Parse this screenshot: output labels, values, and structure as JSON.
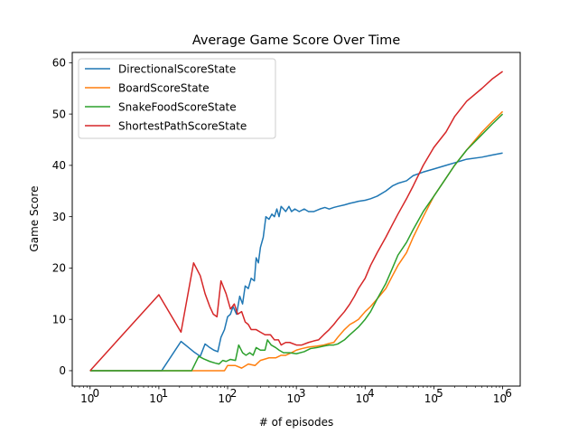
{
  "chart_data": {
    "type": "line",
    "title": "Average Game Score Over Time",
    "xlabel": "# of episodes",
    "ylabel": "Game Score",
    "xscale": "log",
    "xlim": [
      0.55,
      1800000
    ],
    "ylim": [
      -3,
      62
    ],
    "x_ticks": [
      {
        "value": 1,
        "base": "10",
        "exp": "0"
      },
      {
        "value": 10,
        "base": "10",
        "exp": "1"
      },
      {
        "value": 100,
        "base": "10",
        "exp": "2"
      },
      {
        "value": 1000,
        "base": "10",
        "exp": "3"
      },
      {
        "value": 10000,
        "base": "10",
        "exp": "4"
      },
      {
        "value": 100000,
        "base": "10",
        "exp": "5"
      },
      {
        "value": 1000000,
        "base": "10",
        "exp": "6"
      }
    ],
    "y_ticks": [
      0,
      10,
      20,
      30,
      40,
      50,
      60
    ],
    "grid": false,
    "legend_position": "top-left",
    "series": [
      {
        "name": "DirectionalScoreState",
        "color": "#1f77b4",
        "points": [
          [
            1,
            0
          ],
          [
            11,
            0
          ],
          [
            21,
            5.7
          ],
          [
            26,
            4.7
          ],
          [
            32,
            3.7
          ],
          [
            40,
            2.8
          ],
          [
            47,
            5.2
          ],
          [
            55,
            4.5
          ],
          [
            63,
            4
          ],
          [
            72,
            3.7
          ],
          [
            80,
            6.5
          ],
          [
            90,
            8
          ],
          [
            100,
            10.5
          ],
          [
            110,
            11
          ],
          [
            120,
            12.5
          ],
          [
            135,
            11
          ],
          [
            150,
            14.5
          ],
          [
            165,
            13
          ],
          [
            180,
            16.5
          ],
          [
            200,
            16
          ],
          [
            220,
            18
          ],
          [
            245,
            17.5
          ],
          [
            260,
            22
          ],
          [
            280,
            21
          ],
          [
            300,
            24
          ],
          [
            330,
            26
          ],
          [
            360,
            30
          ],
          [
            400,
            29.5
          ],
          [
            440,
            30.5
          ],
          [
            480,
            30
          ],
          [
            520,
            31.5
          ],
          [
            560,
            30
          ],
          [
            600,
            32
          ],
          [
            650,
            31.5
          ],
          [
            700,
            31
          ],
          [
            780,
            32
          ],
          [
            850,
            31
          ],
          [
            950,
            31.5
          ],
          [
            1100,
            31
          ],
          [
            1300,
            31.5
          ],
          [
            1500,
            31
          ],
          [
            1800,
            31
          ],
          [
            2200,
            31.5
          ],
          [
            2600,
            31.8
          ],
          [
            3000,
            31.5
          ],
          [
            3500,
            31.8
          ],
          [
            4000,
            32
          ],
          [
            5000,
            32.3
          ],
          [
            6000,
            32.6
          ],
          [
            7000,
            32.8
          ],
          [
            8000,
            33
          ],
          [
            10000,
            33.2
          ],
          [
            12000,
            33.5
          ],
          [
            15000,
            34
          ],
          [
            20000,
            35
          ],
          [
            25000,
            36
          ],
          [
            30000,
            36.5
          ],
          [
            40000,
            37
          ],
          [
            50000,
            38
          ],
          [
            70000,
            38.7
          ],
          [
            100000,
            39.3
          ],
          [
            150000,
            40
          ],
          [
            200000,
            40.5
          ],
          [
            300000,
            41.2
          ],
          [
            500000,
            41.6
          ],
          [
            700000,
            42
          ],
          [
            1000000,
            42.4
          ]
        ]
      },
      {
        "name": "BoardScoreState",
        "color": "#ff7f0e",
        "points": [
          [
            1,
            0
          ],
          [
            30,
            0
          ],
          [
            90,
            0
          ],
          [
            100,
            1
          ],
          [
            130,
            1
          ],
          [
            160,
            0.5
          ],
          [
            200,
            1.3
          ],
          [
            250,
            1
          ],
          [
            300,
            2
          ],
          [
            400,
            2.5
          ],
          [
            500,
            2.5
          ],
          [
            600,
            3
          ],
          [
            700,
            3
          ],
          [
            850,
            3.5
          ],
          [
            1000,
            4
          ],
          [
            1200,
            4.3
          ],
          [
            1500,
            4.6
          ],
          [
            2000,
            4.8
          ],
          [
            2500,
            5
          ],
          [
            3000,
            5.3
          ],
          [
            3500,
            5.5
          ],
          [
            4000,
            6.5
          ],
          [
            5000,
            8
          ],
          [
            6000,
            9
          ],
          [
            7000,
            9.5
          ],
          [
            8000,
            10
          ],
          [
            10000,
            11.5
          ],
          [
            12000,
            12.5
          ],
          [
            15000,
            14
          ],
          [
            20000,
            16
          ],
          [
            25000,
            18.5
          ],
          [
            30000,
            20.5
          ],
          [
            40000,
            23
          ],
          [
            50000,
            26
          ],
          [
            70000,
            30
          ],
          [
            100000,
            34
          ],
          [
            150000,
            37.5
          ],
          [
            200000,
            40
          ],
          [
            300000,
            43
          ],
          [
            500000,
            46.5
          ],
          [
            700000,
            48.5
          ],
          [
            1000000,
            50.5
          ]
        ]
      },
      {
        "name": "SnakeFoodScoreState",
        "color": "#2ca02c",
        "points": [
          [
            1,
            0
          ],
          [
            30,
            0
          ],
          [
            38,
            2.8
          ],
          [
            45,
            2.3
          ],
          [
            55,
            1.8
          ],
          [
            65,
            1.5
          ],
          [
            75,
            1.3
          ],
          [
            85,
            2
          ],
          [
            95,
            1.8
          ],
          [
            110,
            2.2
          ],
          [
            130,
            2
          ],
          [
            145,
            5
          ],
          [
            165,
            3.5
          ],
          [
            185,
            3
          ],
          [
            210,
            3.5
          ],
          [
            235,
            3
          ],
          [
            260,
            4.5
          ],
          [
            300,
            4
          ],
          [
            350,
            4
          ],
          [
            380,
            6
          ],
          [
            430,
            5
          ],
          [
            500,
            4.5
          ],
          [
            560,
            4
          ],
          [
            650,
            3.5
          ],
          [
            800,
            3.5
          ],
          [
            1000,
            3.3
          ],
          [
            1300,
            3.7
          ],
          [
            1600,
            4.3
          ],
          [
            2000,
            4.5
          ],
          [
            2500,
            4.8
          ],
          [
            3000,
            5
          ],
          [
            3500,
            5
          ],
          [
            4000,
            5.2
          ],
          [
            5000,
            6
          ],
          [
            6000,
            7
          ],
          [
            7000,
            7.8
          ],
          [
            8000,
            8.5
          ],
          [
            10000,
            10
          ],
          [
            12000,
            11.5
          ],
          [
            15000,
            14
          ],
          [
            20000,
            17
          ],
          [
            25000,
            20
          ],
          [
            30000,
            22.5
          ],
          [
            40000,
            25
          ],
          [
            50000,
            27.5
          ],
          [
            70000,
            31
          ],
          [
            100000,
            34
          ],
          [
            150000,
            37.5
          ],
          [
            200000,
            40
          ],
          [
            300000,
            43
          ],
          [
            500000,
            46
          ],
          [
            700000,
            48
          ],
          [
            1000000,
            50
          ]
        ]
      },
      {
        "name": "ShortestPathScoreState",
        "color": "#d62728",
        "points": [
          [
            1,
            0
          ],
          [
            10,
            14.8
          ],
          [
            21,
            7.5
          ],
          [
            32,
            21
          ],
          [
            40,
            18.5
          ],
          [
            47,
            15
          ],
          [
            55,
            12.5
          ],
          [
            62,
            11
          ],
          [
            70,
            10.5
          ],
          [
            80,
            17.5
          ],
          [
            95,
            15
          ],
          [
            110,
            12
          ],
          [
            125,
            13
          ],
          [
            140,
            11
          ],
          [
            160,
            11.5
          ],
          [
            180,
            9.5
          ],
          [
            200,
            9
          ],
          [
            220,
            8
          ],
          [
            260,
            8
          ],
          [
            300,
            7.5
          ],
          [
            350,
            7
          ],
          [
            420,
            7
          ],
          [
            480,
            6
          ],
          [
            550,
            6
          ],
          [
            600,
            5
          ],
          [
            700,
            5.5
          ],
          [
            800,
            5.5
          ],
          [
            1000,
            5
          ],
          [
            1200,
            5
          ],
          [
            1500,
            5.5
          ],
          [
            1800,
            5.8
          ],
          [
            2100,
            6
          ],
          [
            2500,
            7
          ],
          [
            3000,
            8
          ],
          [
            3500,
            9
          ],
          [
            4000,
            10
          ],
          [
            5000,
            11.5
          ],
          [
            6000,
            13
          ],
          [
            7000,
            14.5
          ],
          [
            8000,
            16
          ],
          [
            10000,
            18
          ],
          [
            12000,
            20.5
          ],
          [
            15000,
            23
          ],
          [
            20000,
            26
          ],
          [
            25000,
            28.5
          ],
          [
            30000,
            30.5
          ],
          [
            40000,
            33.5
          ],
          [
            50000,
            36
          ],
          [
            70000,
            40
          ],
          [
            100000,
            43.5
          ],
          [
            150000,
            46.5
          ],
          [
            200000,
            49.5
          ],
          [
            300000,
            52.5
          ],
          [
            500000,
            55
          ],
          [
            700000,
            56.8
          ],
          [
            1000000,
            58.3
          ]
        ]
      }
    ]
  }
}
